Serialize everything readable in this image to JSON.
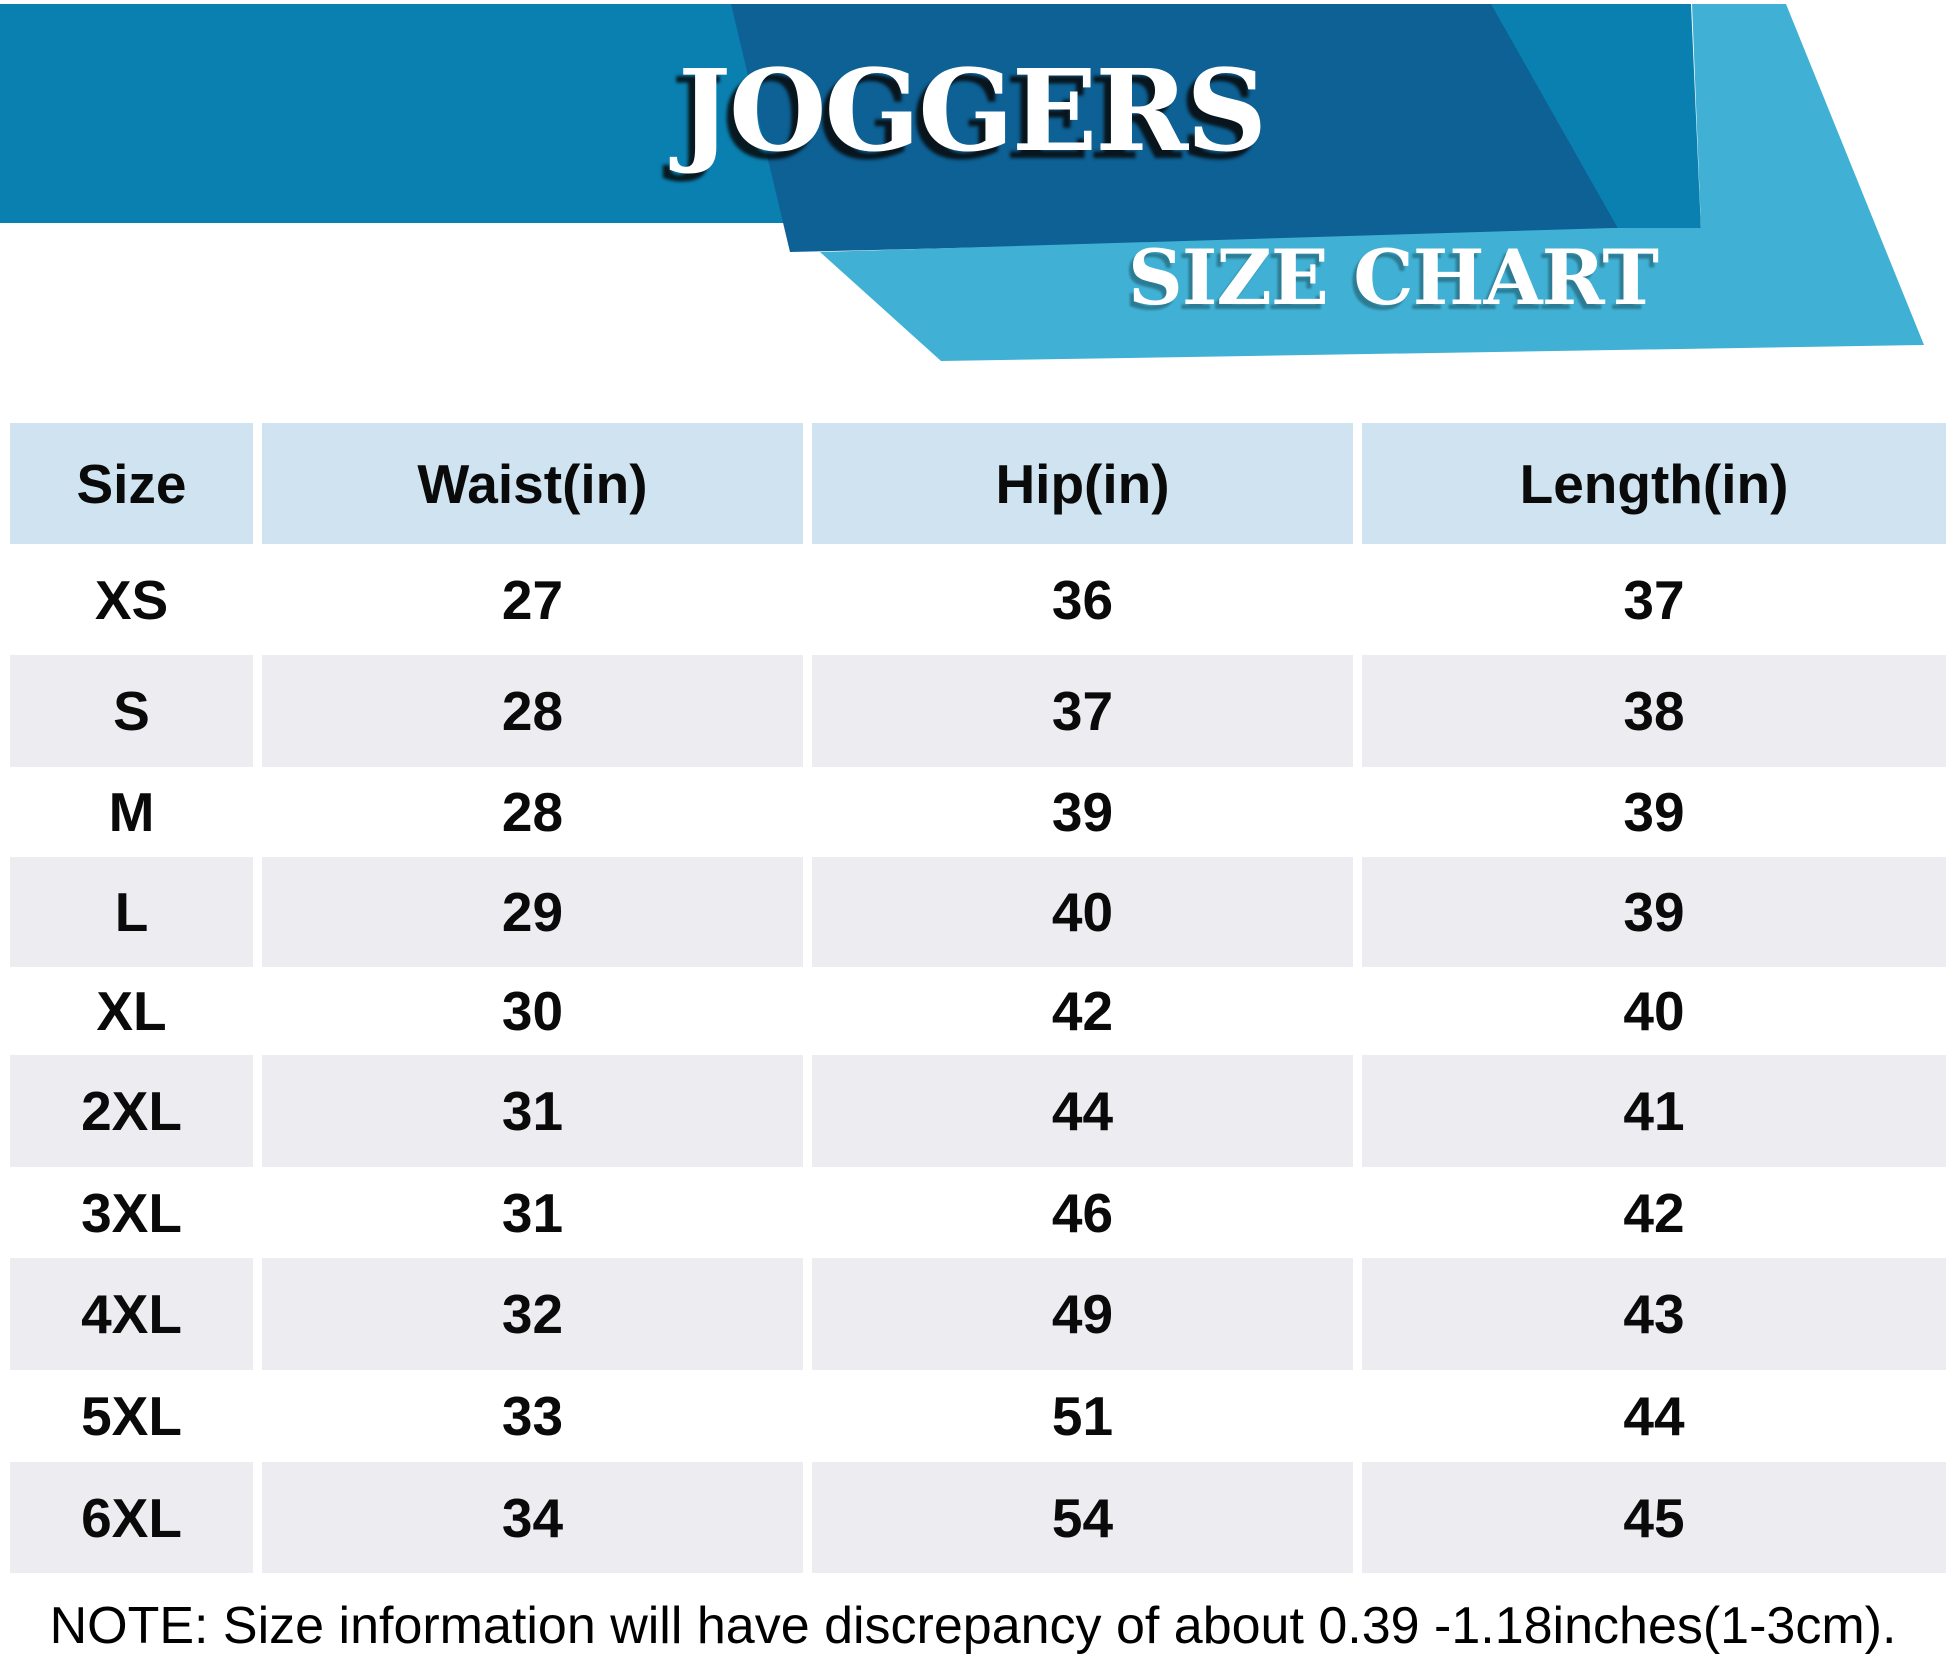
{
  "chart_data": {
    "type": "table",
    "title": "JOGGERS",
    "subtitle": "SIZE CHART",
    "columns": [
      "Size",
      "Waist(in)",
      "Hip(in)",
      "Length(in)"
    ],
    "rows": [
      [
        "XS",
        27,
        36,
        37
      ],
      [
        "S",
        28,
        37,
        38
      ],
      [
        "M",
        28,
        39,
        39
      ],
      [
        "L",
        29,
        40,
        39
      ],
      [
        "XL",
        30,
        42,
        40
      ],
      [
        "2XL",
        31,
        44,
        41
      ],
      [
        "3XL",
        31,
        46,
        42
      ],
      [
        "4XL",
        32,
        49,
        43
      ],
      [
        "5XL",
        33,
        51,
        44
      ],
      [
        "6XL",
        34,
        54,
        45
      ]
    ],
    "note": "NOTE: Size information will have discrepancy of about 0.39 -1.18inches(1-3cm).",
    "layout_hints": {
      "header_row_bg": "#cfe4f0",
      "alt_row_bg": "#edecf1",
      "grid": "off",
      "units": "inches"
    }
  },
  "colors": {
    "banner_main": "#0a80b1",
    "banner_dark": "#0d6195",
    "banner_light": "#40b1d4",
    "header_cell_bg": "#cfe4f0",
    "row_alt_bg": "#edecf1",
    "text": "#000000",
    "title_text": "#ffffff"
  }
}
